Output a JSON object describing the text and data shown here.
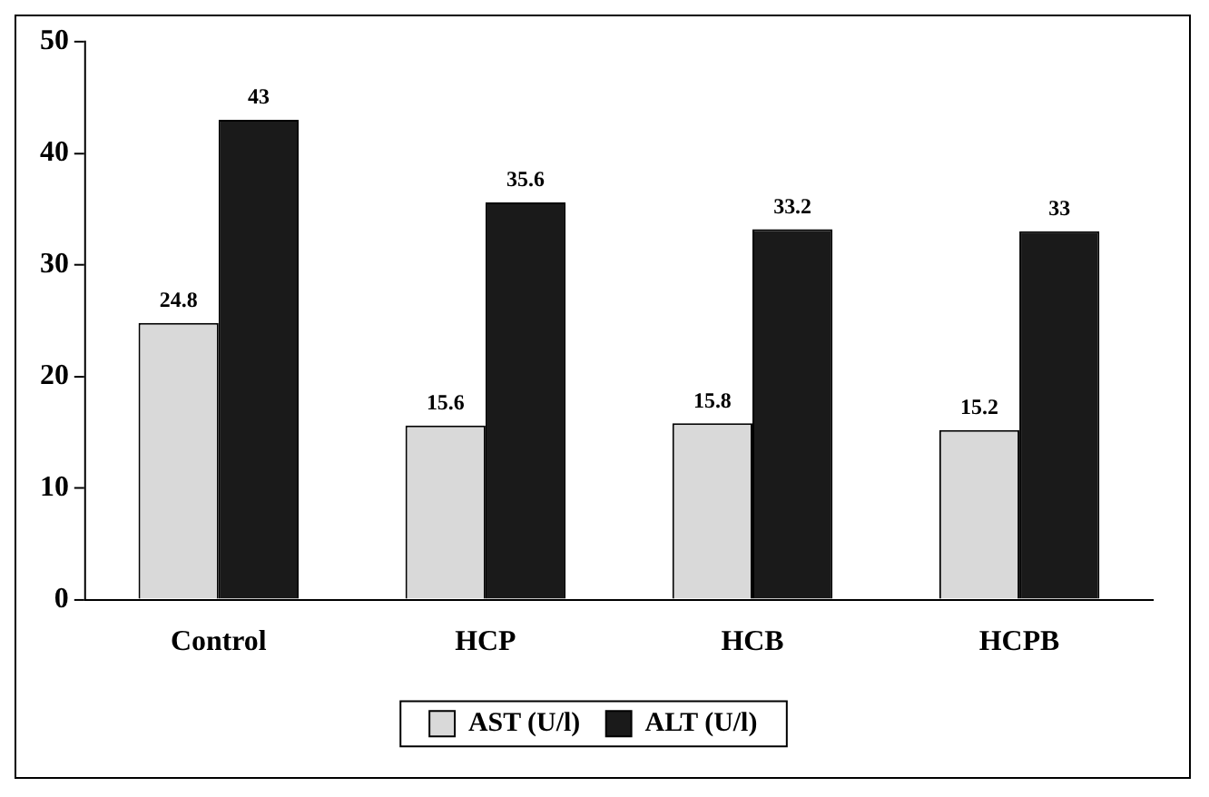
{
  "chart_data": {
    "type": "bar",
    "categories": [
      "Control",
      "HCP",
      "HCB",
      "HCPB"
    ],
    "series": [
      {
        "name": "AST (U/l)",
        "color": "#d9d9d9",
        "values": [
          24.8,
          15.6,
          15.8,
          15.2
        ]
      },
      {
        "name": "ALT (U/l)",
        "color": "#1a1a1a",
        "values": [
          43,
          35.6,
          33.2,
          33
        ]
      }
    ],
    "ylim": [
      0,
      50
    ],
    "yticks": [
      0,
      10,
      20,
      30,
      40,
      50
    ],
    "grid": false,
    "legend": "bottom",
    "data_labels": true
  }
}
